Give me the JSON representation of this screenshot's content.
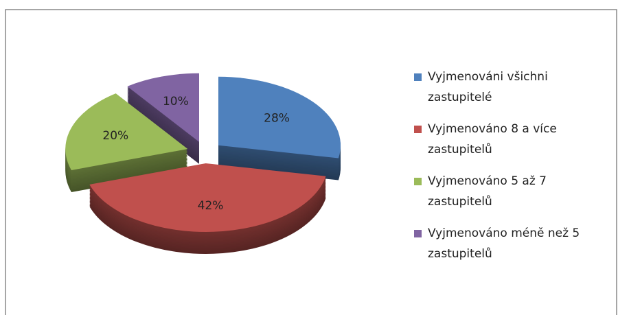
{
  "chart_data": {
    "type": "pie",
    "categories": [
      "Vyjmenováni všichni zastupitelé",
      "Vyjmenováno 8 a více zastupitelů",
      "Vyjmenováno 5 až 7 zastupitelů",
      "Vyjmenováno méně než 5 zastupitelů"
    ],
    "values": [
      28,
      42,
      20,
      10
    ],
    "value_labels": [
      "28%",
      "42%",
      "20%",
      "10%"
    ],
    "colors": [
      "#4f81bd",
      "#c0504d",
      "#9bbb59",
      "#8064a2"
    ]
  }
}
